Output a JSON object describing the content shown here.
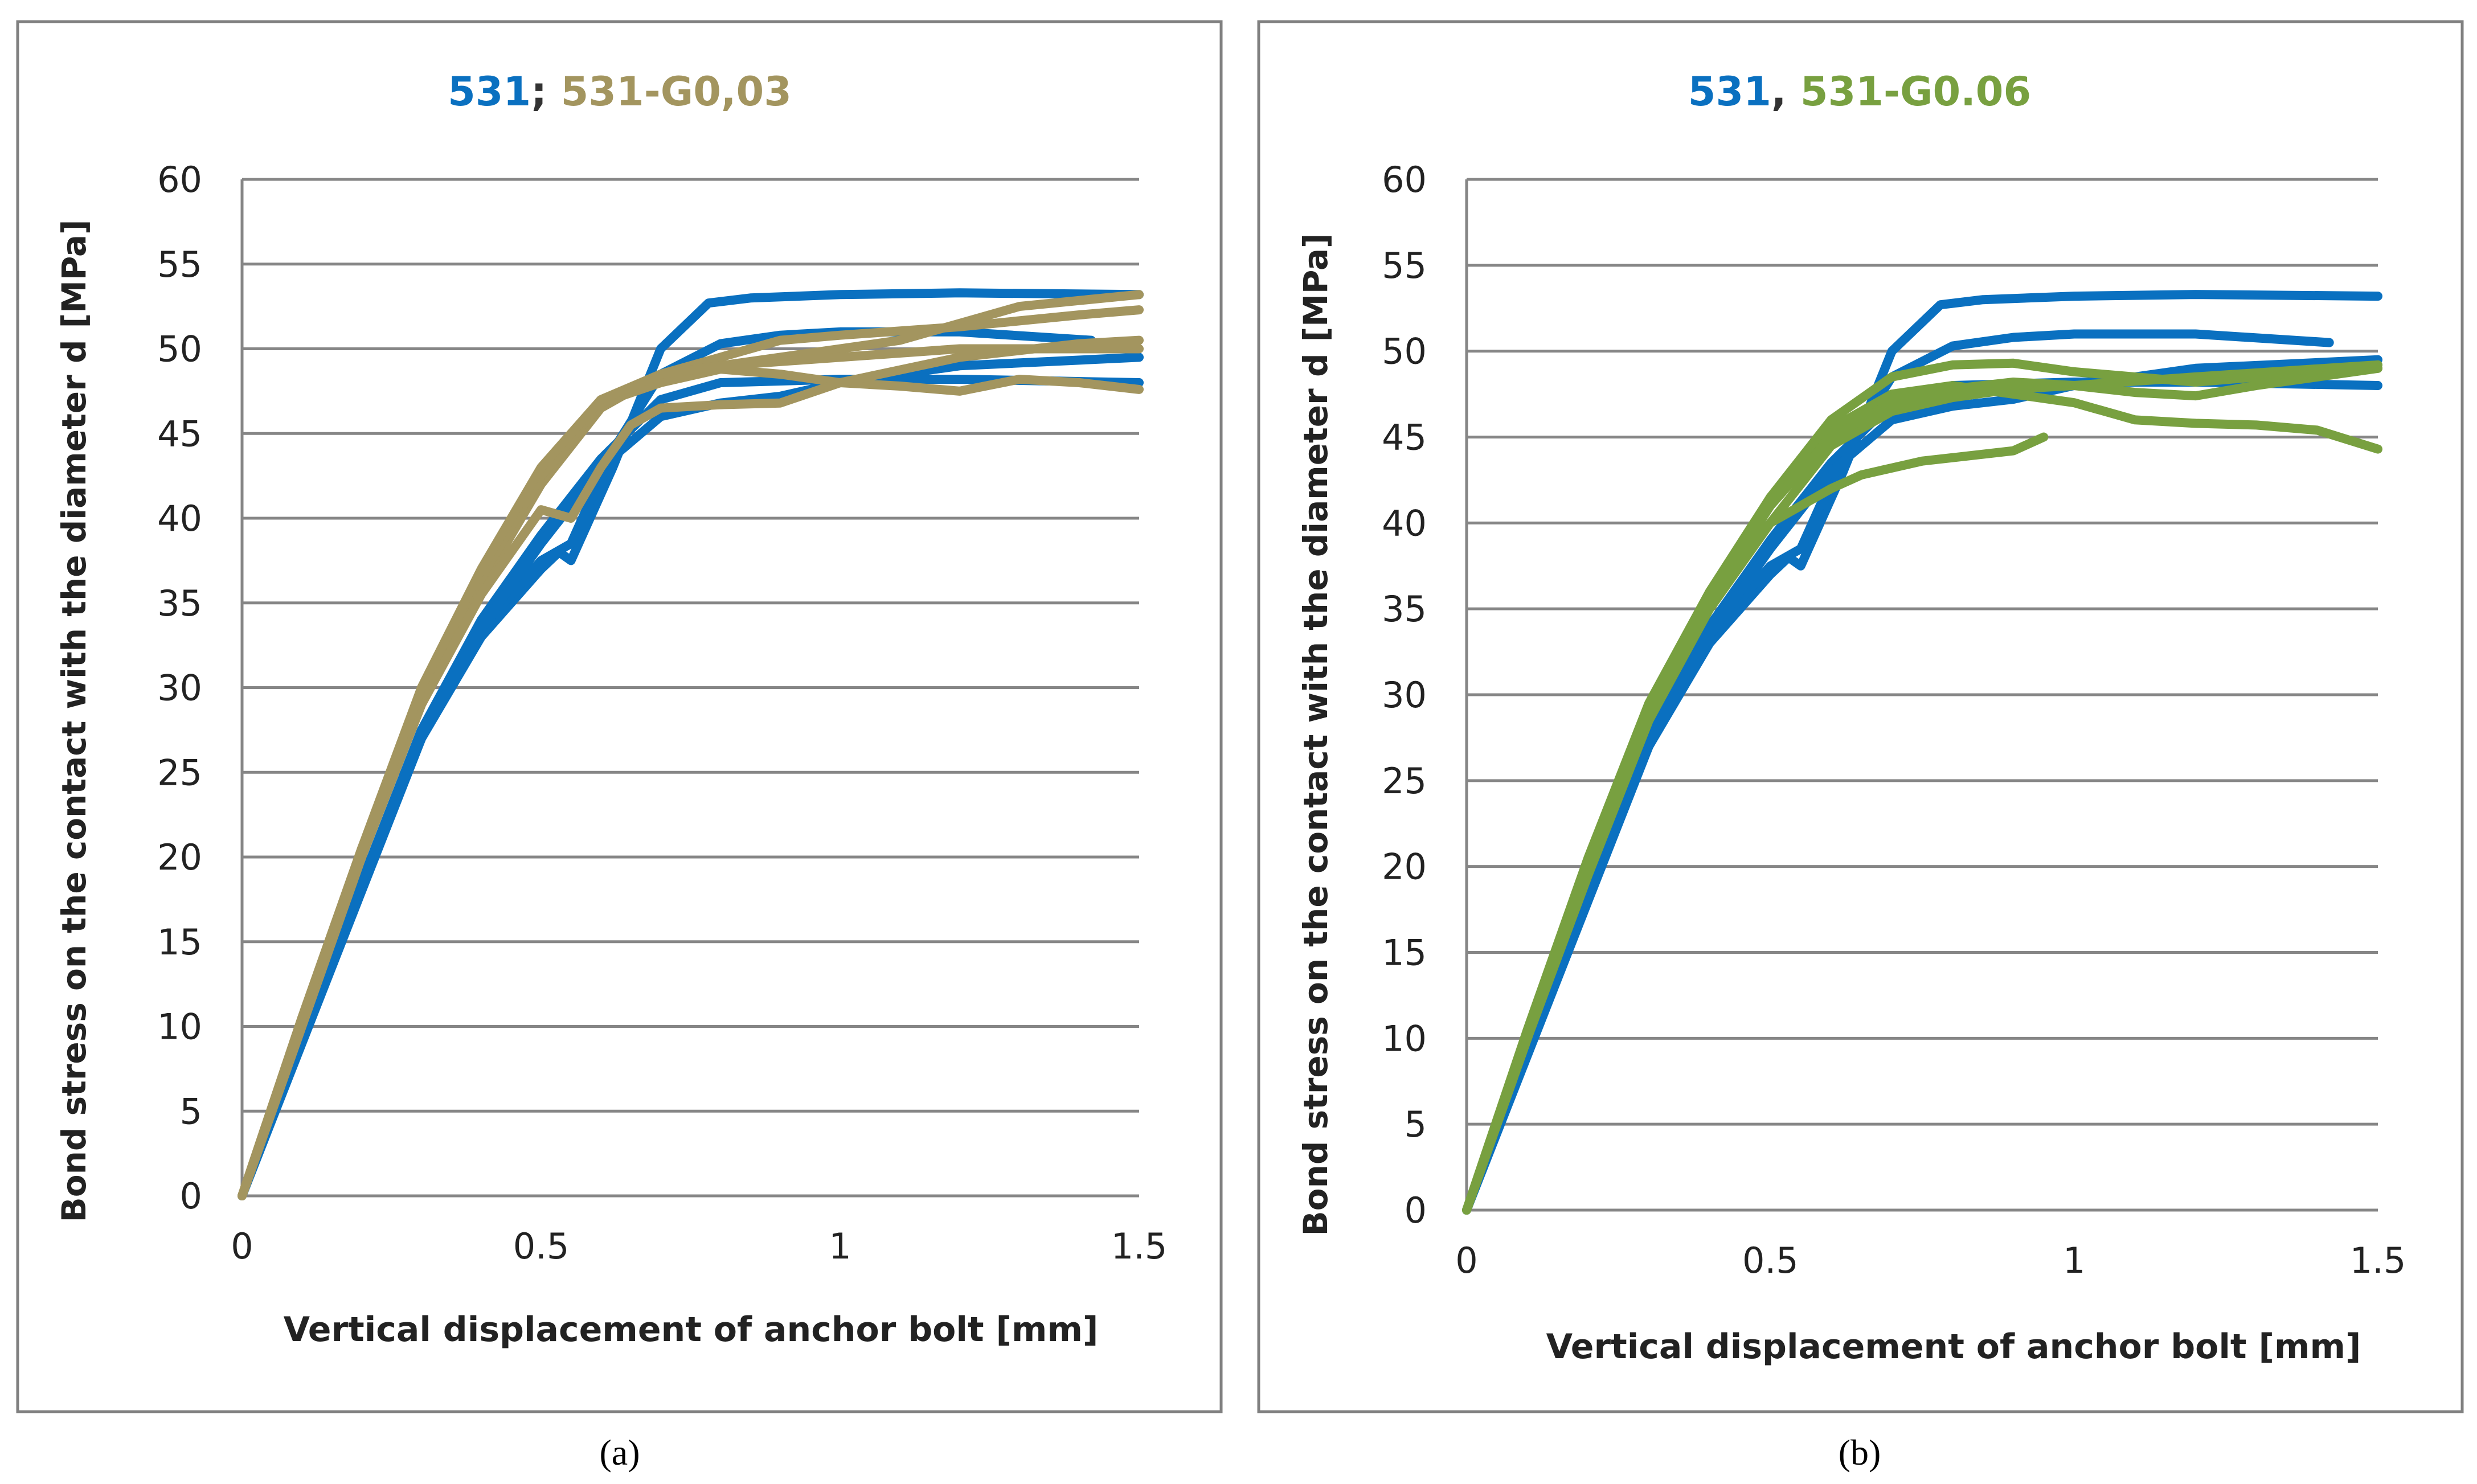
{
  "chart_data": [
    {
      "panel": "a",
      "type": "line",
      "title_parts": [
        "531",
        "; ",
        "531-G0,03"
      ],
      "xlabel": "Vertical displacement of anchor bolt [mm]",
      "ylabel": "Bond stress on the contact with the diameter d [MPa]",
      "xlim": [
        0,
        1.5
      ],
      "ylim": [
        0,
        60
      ],
      "xticks": [
        0,
        0.5,
        1,
        1.5
      ],
      "xtick_labels": [
        "0",
        "0.5",
        "1",
        "1.5"
      ],
      "yticks": [
        0,
        5,
        10,
        15,
        20,
        25,
        30,
        35,
        40,
        45,
        50,
        55,
        60
      ],
      "ytick_labels": [
        "0",
        "5",
        "10",
        "15",
        "20",
        "25",
        "30",
        "35",
        "40",
        "45",
        "50",
        "55",
        "60"
      ],
      "grid": true,
      "caption": "(a)",
      "series": [
        {
          "name": "531",
          "color": "#0a70c0",
          "x": [
            0,
            0.1,
            0.2,
            0.3,
            0.4,
            0.5,
            0.53,
            0.55,
            0.62,
            0.7,
            0.78,
            0.85,
            1.0,
            1.2,
            1.5
          ],
          "y": [
            0,
            9,
            18,
            27,
            33,
            37,
            38,
            37.5,
            43,
            50,
            52.7,
            53,
            53.2,
            53.3,
            53.2
          ]
        },
        {
          "name": "531",
          "color": "#0a70c0",
          "x": [
            0,
            0.1,
            0.2,
            0.3,
            0.4,
            0.5,
            0.55,
            0.62,
            0.7,
            0.8,
            0.9,
            1.0,
            1.2,
            1.42
          ],
          "y": [
            0,
            9.5,
            18.5,
            27.5,
            33.5,
            37.5,
            38.5,
            44,
            48.5,
            50.3,
            50.8,
            51,
            51,
            50.5
          ]
        },
        {
          "name": "531",
          "color": "#0a70c0",
          "x": [
            0,
            0.1,
            0.2,
            0.3,
            0.4,
            0.5,
            0.6,
            0.7,
            0.8,
            1.0,
            1.2,
            1.5
          ],
          "y": [
            0,
            9.5,
            18.5,
            27.5,
            34,
            39,
            43.5,
            47,
            48,
            48.2,
            48.2,
            48
          ]
        },
        {
          "name": "531",
          "color": "#0a70c0",
          "x": [
            0,
            0.1,
            0.2,
            0.3,
            0.4,
            0.5,
            0.6,
            0.7,
            0.8,
            0.9,
            1.0,
            1.2,
            1.5
          ],
          "y": [
            0,
            9.5,
            18.5,
            27,
            33.5,
            38.5,
            43,
            46,
            46.8,
            47.2,
            48,
            49,
            49.5
          ]
        },
        {
          "name": "531-G0,03",
          "color": "#a3955f",
          "x": [
            0,
            0.1,
            0.2,
            0.3,
            0.4,
            0.5,
            0.6,
            0.7,
            0.8,
            0.9,
            1.0,
            1.1,
            1.2,
            1.3,
            1.5
          ],
          "y": [
            0,
            10,
            20,
            29,
            36,
            42,
            46.5,
            48.5,
            49,
            49.5,
            50,
            50.5,
            51.5,
            52.5,
            53.2
          ]
        },
        {
          "name": "531-G0,03",
          "color": "#a3955f",
          "x": [
            0,
            0.1,
            0.2,
            0.3,
            0.4,
            0.5,
            0.6,
            0.7,
            0.8,
            0.9,
            1.0,
            1.2,
            1.4,
            1.5
          ],
          "y": [
            0,
            10.5,
            20.5,
            29.5,
            36.5,
            42.5,
            46.5,
            48.5,
            49.5,
            50.5,
            50.8,
            51.3,
            52,
            52.3
          ]
        },
        {
          "name": "531-G0,03",
          "color": "#a3955f",
          "x": [
            0,
            0.1,
            0.2,
            0.3,
            0.4,
            0.5,
            0.6,
            0.7,
            0.8,
            0.9,
            1.0,
            1.1,
            1.2,
            1.3,
            1.4,
            1.5
          ],
          "y": [
            0,
            10,
            20,
            29.5,
            36.5,
            42.5,
            46.8,
            48,
            48.8,
            48.5,
            48,
            47.8,
            47.5,
            48.2,
            48,
            47.6
          ]
        },
        {
          "name": "531-G0,03",
          "color": "#a3955f",
          "x": [
            0,
            0.1,
            0.2,
            0.3,
            0.4,
            0.5,
            0.55,
            0.6,
            0.65,
            0.7,
            0.8,
            0.9,
            1.0,
            1.2,
            1.4,
            1.5
          ],
          "y": [
            0,
            10,
            20,
            29,
            35.5,
            40.5,
            40,
            43,
            45.5,
            46.5,
            46.7,
            46.8,
            48,
            49.5,
            50.3,
            50.5
          ]
        },
        {
          "name": "531-G0,03",
          "color": "#a3955f",
          "x": [
            0,
            0.1,
            0.2,
            0.3,
            0.4,
            0.5,
            0.6,
            0.7,
            0.8,
            1.0,
            1.2,
            1.5
          ],
          "y": [
            0,
            10.5,
            20.5,
            30,
            37,
            43,
            47,
            48.5,
            49,
            49.5,
            50,
            50
          ]
        }
      ]
    },
    {
      "panel": "b",
      "type": "line",
      "title_parts": [
        "531",
        ", ",
        "531-G0.06"
      ],
      "xlabel": "Vertical displacement of anchor bolt [mm]",
      "ylabel": "Bond stress on the contact with the diameter d [MPa]",
      "xlim": [
        0,
        1.5
      ],
      "ylim": [
        0,
        60
      ],
      "xticks": [
        0,
        0.5,
        1,
        1.5
      ],
      "xtick_labels": [
        "0",
        "0.5",
        "1",
        "1.5"
      ],
      "yticks": [
        0,
        5,
        10,
        15,
        20,
        25,
        30,
        35,
        40,
        45,
        50,
        55,
        60
      ],
      "ytick_labels": [
        "0",
        "5",
        "10",
        "15",
        "20",
        "25",
        "30",
        "35",
        "40",
        "45",
        "50",
        "55",
        "60"
      ],
      "grid": true,
      "caption": "(b)",
      "series": [
        {
          "name": "531",
          "color": "#0a70c0",
          "x": [
            0,
            0.1,
            0.2,
            0.3,
            0.4,
            0.5,
            0.53,
            0.55,
            0.62,
            0.7,
            0.78,
            0.85,
            1.0,
            1.2,
            1.5
          ],
          "y": [
            0,
            9,
            18,
            27,
            33,
            37,
            38,
            37.5,
            43,
            50,
            52.7,
            53,
            53.2,
            53.3,
            53.2
          ]
        },
        {
          "name": "531",
          "color": "#0a70c0",
          "x": [
            0,
            0.1,
            0.2,
            0.3,
            0.4,
            0.5,
            0.55,
            0.62,
            0.7,
            0.8,
            0.9,
            1.0,
            1.2,
            1.42
          ],
          "y": [
            0,
            9.5,
            18.5,
            27.5,
            33.5,
            37.5,
            38.5,
            44,
            48.5,
            50.3,
            50.8,
            51,
            51,
            50.5
          ]
        },
        {
          "name": "531",
          "color": "#0a70c0",
          "x": [
            0,
            0.1,
            0.2,
            0.3,
            0.4,
            0.5,
            0.6,
            0.7,
            0.8,
            1.0,
            1.2,
            1.5
          ],
          "y": [
            0,
            9.5,
            18.5,
            27.5,
            34,
            39,
            43.5,
            47,
            48,
            48.2,
            48.2,
            48
          ]
        },
        {
          "name": "531",
          "color": "#0a70c0",
          "x": [
            0,
            0.1,
            0.2,
            0.3,
            0.4,
            0.5,
            0.6,
            0.7,
            0.8,
            0.9,
            1.0,
            1.2,
            1.5
          ],
          "y": [
            0,
            9.5,
            18.5,
            27,
            33.5,
            38.5,
            43,
            46,
            46.8,
            47.2,
            48,
            49,
            49.5
          ]
        },
        {
          "name": "531-G0.06",
          "color": "#78a040",
          "x": [
            0,
            0.1,
            0.2,
            0.3,
            0.4,
            0.5,
            0.6,
            0.7,
            0.8,
            0.9,
            1.0,
            1.1,
            1.2,
            1.3,
            1.4,
            1.5
          ],
          "y": [
            0,
            10,
            20,
            29,
            35.5,
            41.5,
            45.5,
            47.5,
            48,
            47.5,
            47,
            46,
            45.8,
            45.7,
            45.4,
            44.3
          ]
        },
        {
          "name": "531-G0.06",
          "color": "#78a040",
          "x": [
            0,
            0.1,
            0.2,
            0.3,
            0.4,
            0.5,
            0.55,
            0.6,
            0.65,
            0.7,
            0.75,
            0.8,
            0.9,
            0.95
          ],
          "y": [
            0,
            10,
            20,
            29,
            35,
            40,
            41,
            42,
            42.8,
            43.2,
            43.6,
            43.8,
            44.2,
            45
          ]
        },
        {
          "name": "531-G0.06",
          "color": "#78a040",
          "x": [
            0,
            0.1,
            0.2,
            0.3,
            0.4,
            0.5,
            0.6,
            0.7,
            0.8,
            0.9,
            1.0,
            1.2,
            1.4,
            1.5
          ],
          "y": [
            0,
            10.5,
            20.5,
            29.5,
            36,
            41.5,
            46,
            48.5,
            49.2,
            49.3,
            48.8,
            48.2,
            48.8,
            49
          ]
        },
        {
          "name": "531-G0.06",
          "color": "#78a040",
          "x": [
            0,
            0.1,
            0.2,
            0.3,
            0.4,
            0.5,
            0.6,
            0.7,
            0.8,
            0.9,
            1.0,
            1.2,
            1.5
          ],
          "y": [
            0,
            10,
            19.5,
            28.5,
            35,
            40,
            44.5,
            46.5,
            47.3,
            47.8,
            48,
            48.5,
            49.2
          ]
        },
        {
          "name": "531-G0.06",
          "color": "#78a040",
          "x": [
            0,
            0.1,
            0.2,
            0.3,
            0.4,
            0.5,
            0.6,
            0.7,
            0.8,
            0.9,
            1.0,
            1.1,
            1.2,
            1.3,
            1.5
          ],
          "y": [
            0,
            10,
            20,
            29,
            35.5,
            41,
            45,
            47,
            47.8,
            48.2,
            48,
            47.6,
            47.4,
            48,
            49
          ]
        }
      ]
    }
  ]
}
